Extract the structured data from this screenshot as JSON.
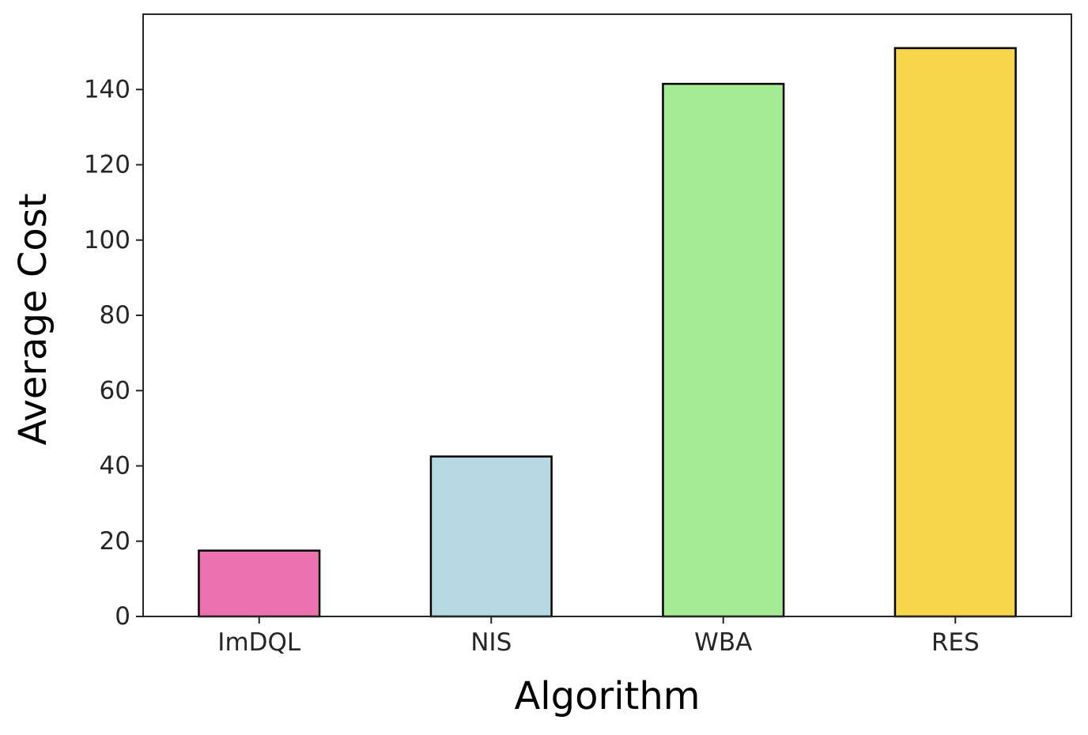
{
  "chart_data": {
    "type": "bar",
    "title": "",
    "xlabel": "Algorithm",
    "ylabel": "Average Cost",
    "categories": [
      "ImDQL",
      "NIS",
      "WBA",
      "RES"
    ],
    "values": [
      17.5,
      42.5,
      141.5,
      151
    ],
    "bar_colors": [
      "#ed72b0",
      "#b6d8e3",
      "#a4eb94",
      "#f6d548"
    ],
    "edge_color": "#000000",
    "ylim": [
      0,
      160
    ],
    "yticks": [
      0,
      20,
      40,
      60,
      80,
      100,
      120,
      140
    ],
    "grid": false,
    "legend": "none"
  }
}
